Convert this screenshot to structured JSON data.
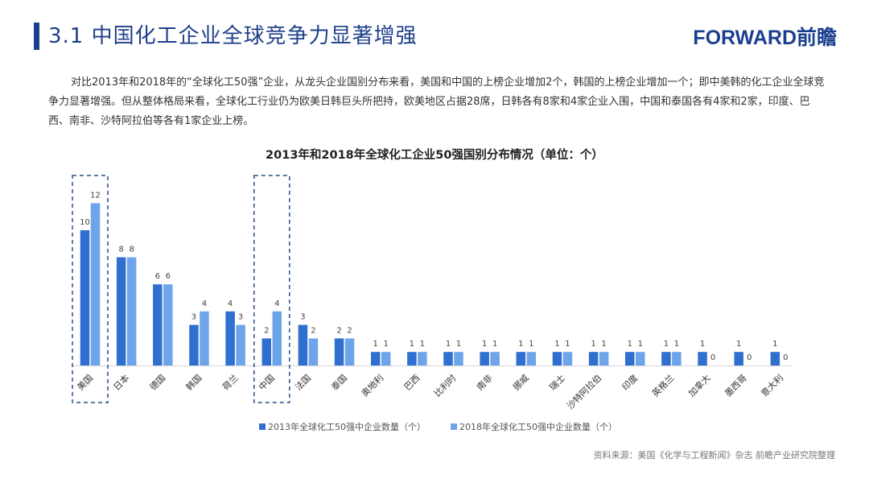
{
  "header": {
    "title": "3.1  中国化工企业全球竞争力显著增强",
    "logo_text": "FORWARD前瞻"
  },
  "intro": "对比2013年和2018年的“全球化工50强”企业，从龙头企业国别分布来看，美国和中国的上榜企业增加2个，韩国的上榜企业增加一个；即中美韩的化工企业全球竞争力显著增强。但从整体格局来看，全球化工行业仍为欧美日韩巨头所把持，欧美地区占据28席，日韩各有8家和4家企业入围，中国和泰国各有4家和2家，印度、巴西、南非、沙特阿拉伯等各有1家企业上榜。",
  "source": "资料来源：美国《化学与工程新闻》杂志  前瞻产业研究院整理",
  "colors": {
    "s2013": "#2e6fd0",
    "s2018": "#6ea5ea",
    "highlight": "#2a4f86"
  },
  "chart_data": {
    "type": "bar",
    "title": "2013年和2018年全球化工企业50强国别分布情况（单位：个）",
    "categories": [
      "美国",
      "日本",
      "德国",
      "韩国",
      "荷兰",
      "中国",
      "法国",
      "泰国",
      "奥地利",
      "巴西",
      "比利时",
      "南非",
      "挪威",
      "瑞士",
      "沙特阿拉伯",
      "印度",
      "英格兰",
      "加拿大",
      "墨西哥",
      "意大利"
    ],
    "series": [
      {
        "name": "2013年全球化工50强中企业数量（个）",
        "values": [
          10,
          8,
          6,
          3,
          4,
          2,
          3,
          2,
          1,
          1,
          1,
          1,
          1,
          1,
          1,
          1,
          1,
          1,
          1,
          1
        ]
      },
      {
        "name": "2018年全球化工50强中企业数量（个）",
        "values": [
          12,
          8,
          6,
          4,
          3,
          4,
          2,
          2,
          1,
          1,
          1,
          1,
          1,
          1,
          1,
          1,
          1,
          0,
          0,
          0
        ]
      }
    ],
    "highlighted": [
      "美国",
      "中国"
    ],
    "ylim": [
      0,
      13
    ],
    "legend": "bottom",
    "grid": false
  }
}
